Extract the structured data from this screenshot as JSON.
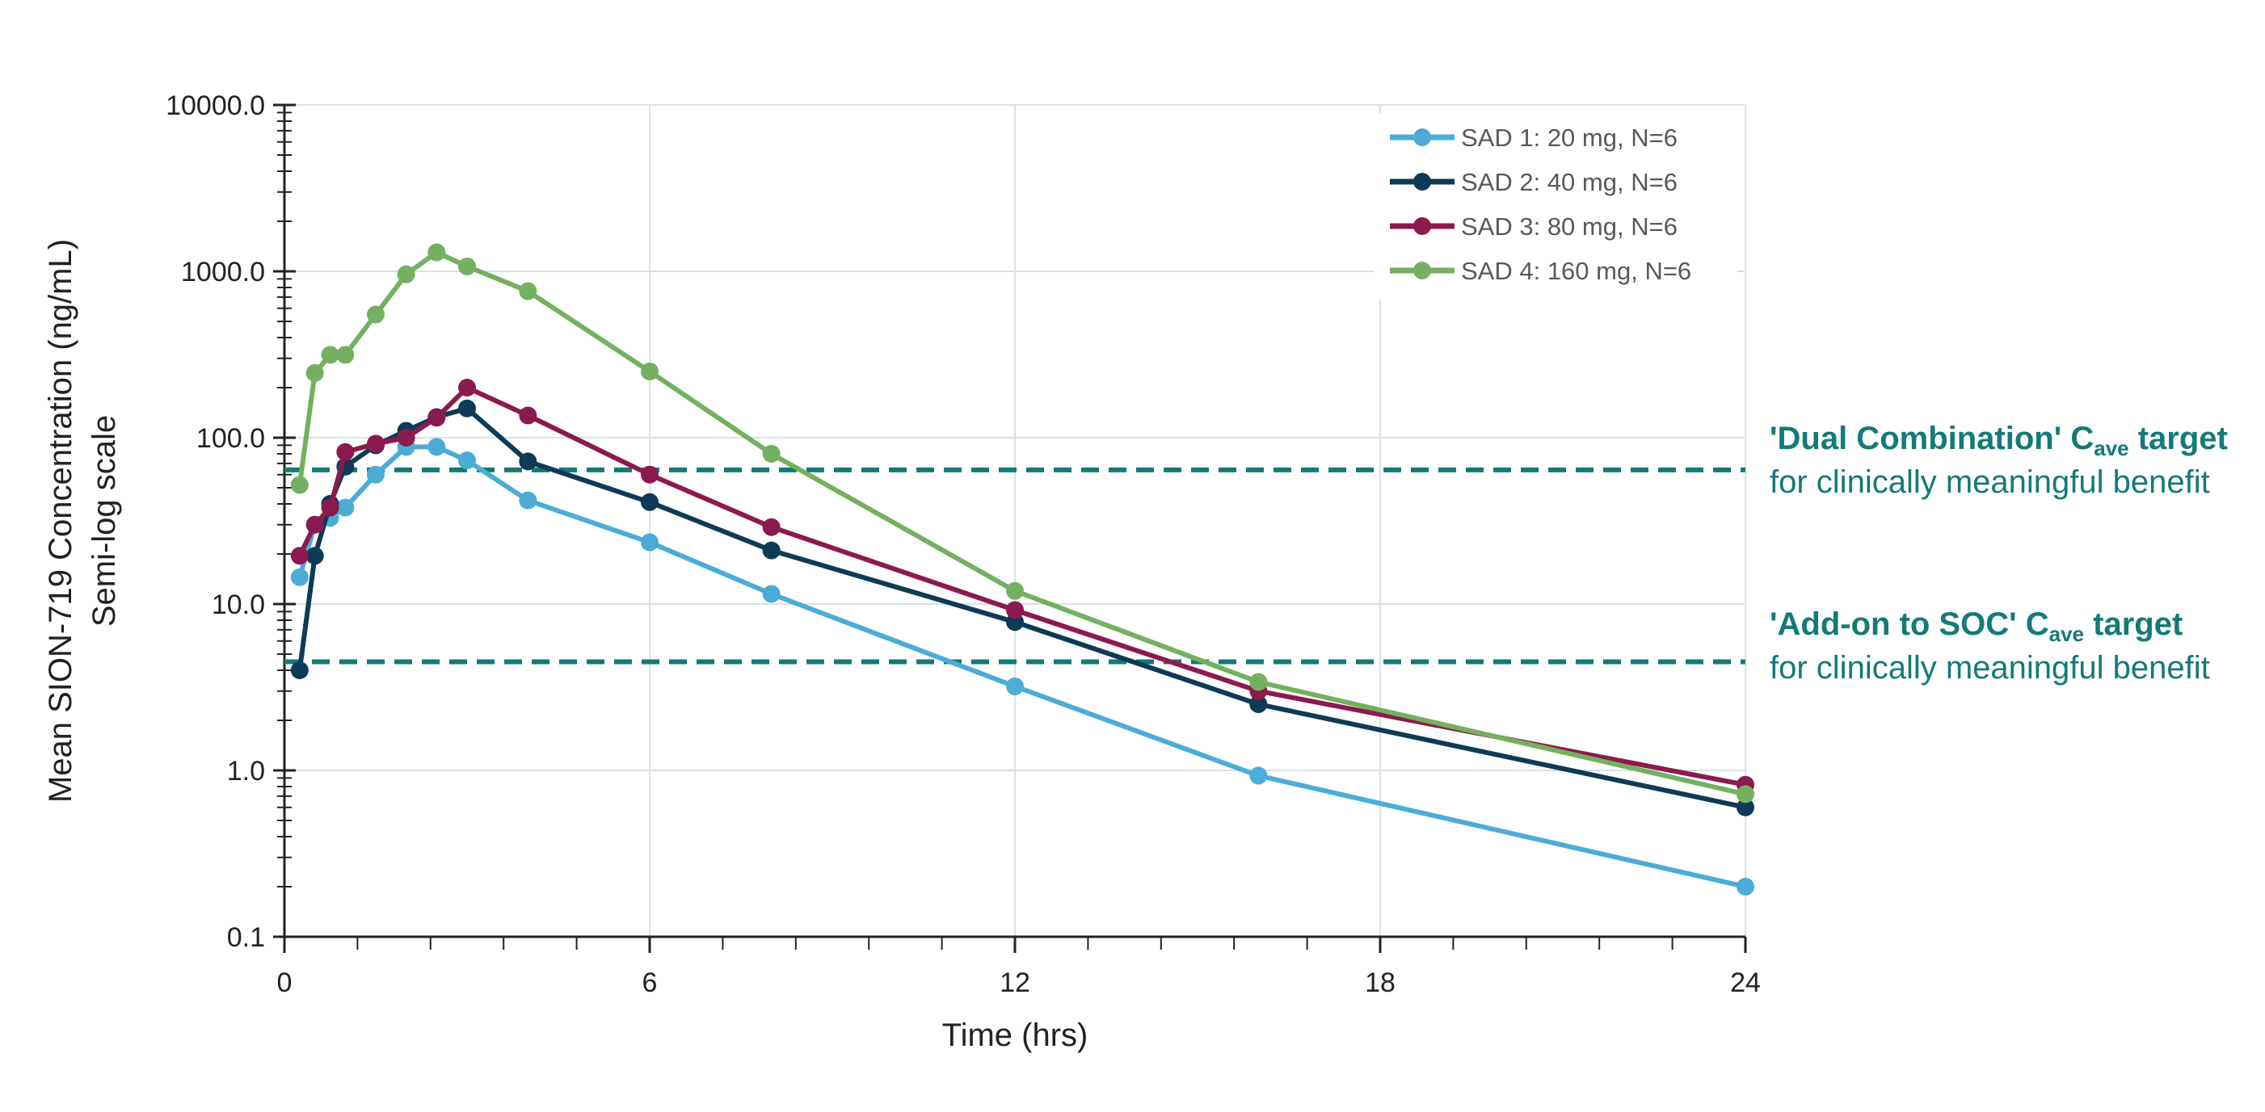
{
  "chart_data": {
    "type": "line",
    "xlabel": "Time (hrs)",
    "ylabel": "Mean SION-719 Concentration (ng/mL)",
    "ylabel_sub": "Semi-log scale",
    "y_scale": "log",
    "xlim": [
      0,
      24
    ],
    "ylim": [
      0.1,
      10000
    ],
    "x_ticks": [
      "0",
      "6",
      "12",
      "18",
      "24"
    ],
    "y_ticks": [
      "0.1",
      "1.0",
      "10.0",
      "100.0",
      "1000.0",
      "10000.0"
    ],
    "grid": true,
    "legend_position": "top-right",
    "series": [
      {
        "name": "SAD 1: 20 mg, N=6",
        "color": "#4bacd6",
        "x": [
          0.25,
          0.5,
          0.75,
          1,
          1.5,
          2,
          2.5,
          3,
          4,
          6,
          8,
          12,
          16,
          24
        ],
        "y": [
          14.5,
          30,
          33,
          38,
          60,
          88,
          88,
          73,
          42,
          23.5,
          11.5,
          3.2,
          0.93,
          0.2
        ]
      },
      {
        "name": "SAD 2: 40 mg, N=6",
        "color": "#0d3b55",
        "x": [
          0.25,
          0.5,
          0.75,
          1,
          1.5,
          2,
          2.5,
          3,
          4,
          6,
          8,
          12,
          16,
          24
        ],
        "y": [
          4.0,
          19.5,
          40,
          67,
          90,
          110,
          133,
          150,
          72,
          41,
          21,
          7.8,
          2.5,
          0.6
        ]
      },
      {
        "name": "SAD 3: 80 mg, N=6",
        "color": "#8b1a4f",
        "x": [
          0.25,
          0.5,
          0.75,
          1,
          1.5,
          2,
          2.5,
          3,
          4,
          6,
          8,
          12,
          16,
          24
        ],
        "y": [
          19.5,
          30,
          38,
          82,
          92,
          100,
          132,
          200,
          136,
          60,
          29,
          9.2,
          3.0,
          0.82
        ]
      },
      {
        "name": "SAD 4: 160 mg, N=6",
        "color": "#73b05f",
        "x": [
          0.25,
          0.5,
          0.75,
          1,
          1.5,
          2,
          2.5,
          3,
          4,
          6,
          8,
          12,
          16,
          24
        ],
        "y": [
          52,
          245,
          315,
          315,
          550,
          960,
          1300,
          1070,
          760,
          250,
          80,
          12,
          3.4,
          0.72
        ]
      }
    ],
    "reference_lines": [
      {
        "y": 64,
        "color": "#137a76",
        "title": "'Dual Combination' C",
        "subscript": "ave",
        "title_suffix": " target",
        "subtitle": "for clinically meaningful benefit"
      },
      {
        "y": 4.5,
        "color": "#137a76",
        "title": "'Add-on to SOC' C",
        "subscript": "ave",
        "title_suffix": " target",
        "subtitle": "for clinically meaningful benefit"
      }
    ]
  }
}
